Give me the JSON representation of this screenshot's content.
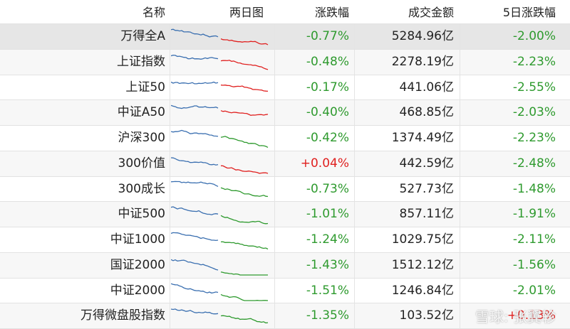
{
  "table": {
    "headers": [
      "名称",
      "两日图",
      "涨跌幅",
      "成交金额",
      "5日涨跌幅"
    ],
    "rows": [
      {
        "name": "万得全A",
        "change": "-0.77%",
        "change_color": "#2e9a2e",
        "volume": "5284.96亿",
        "change5": "-2.00%",
        "change5_color": "#2e9a2e",
        "spark_color": "#e0201f"
      },
      {
        "name": "上证指数",
        "change": "-0.48%",
        "change_color": "#2e9a2e",
        "volume": "2278.19亿",
        "change5": "-2.23%",
        "change5_color": "#2e9a2e",
        "spark_color": "#e0201f"
      },
      {
        "name": "上证50",
        "change": "-0.17%",
        "change_color": "#2e9a2e",
        "volume": "441.06亿",
        "change5": "-2.55%",
        "change5_color": "#2e9a2e",
        "spark_color": "#e0201f"
      },
      {
        "name": "中证A50",
        "change": "-0.40%",
        "change_color": "#2e9a2e",
        "volume": "468.85亿",
        "change5": "-2.03%",
        "change5_color": "#2e9a2e",
        "spark_color": "#e0201f"
      },
      {
        "name": "沪深300",
        "change": "-0.42%",
        "change_color": "#2e9a2e",
        "volume": "1374.49亿",
        "change5": "-2.23%",
        "change5_color": "#2e9a2e",
        "spark_color": "#2e9a2e"
      },
      {
        "name": "300价值",
        "change": "+0.04%",
        "change_color": "#e0201f",
        "volume": "442.59亿",
        "change5": "-2.48%",
        "change5_color": "#2e9a2e",
        "spark_color": "#e0201f"
      },
      {
        "name": "300成长",
        "change": "-0.73%",
        "change_color": "#2e9a2e",
        "volume": "527.73亿",
        "change5": "-1.48%",
        "change5_color": "#2e9a2e",
        "spark_color": "#2e9a2e"
      },
      {
        "name": "中证500",
        "change": "-1.01%",
        "change_color": "#2e9a2e",
        "volume": "857.11亿",
        "change5": "-1.91%",
        "change5_color": "#2e9a2e",
        "spark_color": "#2e9a2e"
      },
      {
        "name": "中证1000",
        "change": "-1.24%",
        "change_color": "#2e9a2e",
        "volume": "1029.75亿",
        "change5": "-2.11%",
        "change5_color": "#2e9a2e",
        "spark_color": "#2e9a2e"
      },
      {
        "name": "国证2000",
        "change": "-1.43%",
        "change_color": "#2e9a2e",
        "volume": "1512.12亿",
        "change5": "-1.56%",
        "change5_color": "#2e9a2e",
        "spark_color": "#2e9a2e"
      },
      {
        "name": "中证2000",
        "change": "-1.51%",
        "change_color": "#2e9a2e",
        "volume": "1246.84亿",
        "change5": "-2.01%",
        "change5_color": "#2e9a2e",
        "spark_color": "#2e9a2e"
      },
      {
        "name": "万得微盘股指数",
        "change": "-1.35%",
        "change_color": "#2e9a2e",
        "volume": "103.52亿",
        "change5": "+0.13%",
        "change5_color": "#e0201f",
        "spark_color": "#2e9a2e"
      }
    ]
  },
  "watermark": "雪球: 张翼轸"
}
